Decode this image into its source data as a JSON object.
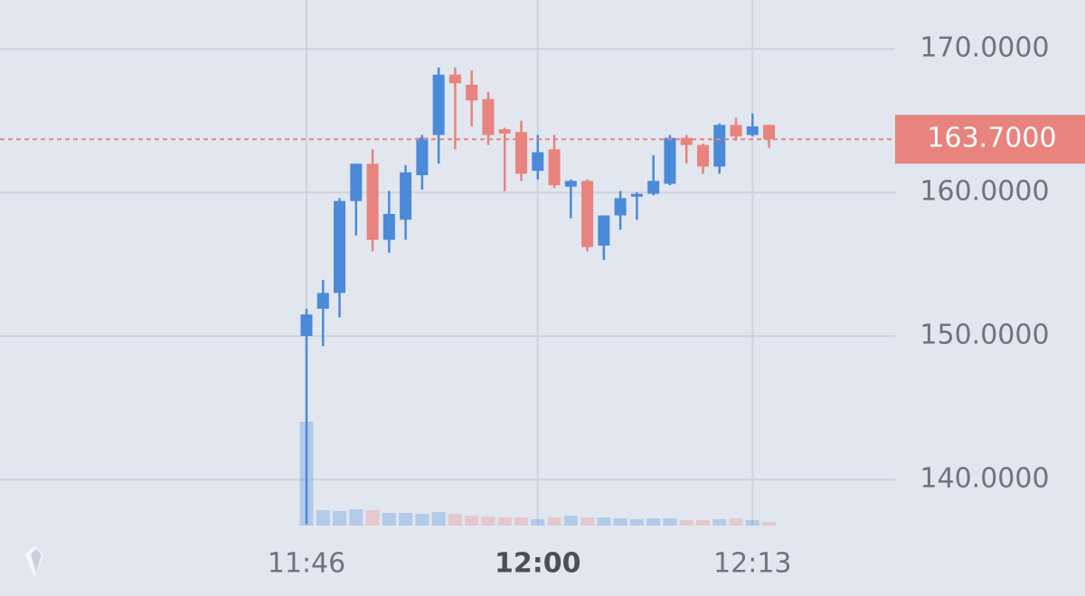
{
  "chart_data": {
    "type": "candlestick",
    "categories": [
      "11:46",
      null,
      null,
      null,
      null,
      null,
      null,
      null,
      null,
      null,
      null,
      null,
      null,
      null,
      "12:00",
      null,
      null,
      null,
      null,
      null,
      null,
      null,
      null,
      null,
      null,
      null,
      null,
      "12:13",
      null
    ],
    "open": [
      150.0,
      151.9,
      153.0,
      159.4,
      162.0,
      156.7,
      158.1,
      161.2,
      164.0,
      168.2,
      167.5,
      166.5,
      164.4,
      164.2,
      161.5,
      163.0,
      160.4,
      160.8,
      156.3,
      158.4,
      159.7,
      159.9,
      160.6,
      163.8,
      163.3,
      161.8,
      164.7,
      164.0,
      164.7
    ],
    "high": [
      151.9,
      153.9,
      159.6,
      162.0,
      163.0,
      160.1,
      161.9,
      164.0,
      168.7,
      168.7,
      168.5,
      167.0,
      164.5,
      165.0,
      164.0,
      164.0,
      160.9,
      160.9,
      158.4,
      160.1,
      160.0,
      162.6,
      164.0,
      164.0,
      163.4,
      164.8,
      165.2,
      165.5,
      164.7
    ],
    "low": [
      136.9,
      149.3,
      151.3,
      157.0,
      155.9,
      155.8,
      156.7,
      160.2,
      162.0,
      163.0,
      164.6,
      163.3,
      160.1,
      160.8,
      160.9,
      160.3,
      158.2,
      155.9,
      155.3,
      157.4,
      158.1,
      159.8,
      160.5,
      162.0,
      161.3,
      161.3,
      163.6,
      163.9,
      163.1
    ],
    "close": [
      151.5,
      153.0,
      159.4,
      162.0,
      156.7,
      158.5,
      161.4,
      163.8,
      168.2,
      167.6,
      166.4,
      164.0,
      164.1,
      161.3,
      162.8,
      160.5,
      160.8,
      156.2,
      158.4,
      159.6,
      159.9,
      160.8,
      163.8,
      163.3,
      161.8,
      164.7,
      163.9,
      164.6,
      163.7
    ],
    "volume": [
      115,
      17,
      16,
      18,
      17,
      14,
      14,
      13,
      15,
      13,
      11,
      10,
      9,
      9,
      7,
      9,
      11,
      9,
      9,
      8,
      7,
      8,
      8,
      6,
      6,
      7,
      8,
      6,
      4
    ],
    "up_color": "#4a8ad8",
    "down_color": "#e8837e",
    "ylim": [
      136.8,
      173.4
    ],
    "yticks": [
      {
        "value": 140,
        "label": "140.0000"
      },
      {
        "value": 150,
        "label": "150.0000"
      },
      {
        "value": 160,
        "label": "160.0000"
      },
      {
        "value": 170,
        "label": "170.0000"
      }
    ],
    "last_price": {
      "value": 163.7,
      "label": "163.7000"
    },
    "grid": true
  }
}
